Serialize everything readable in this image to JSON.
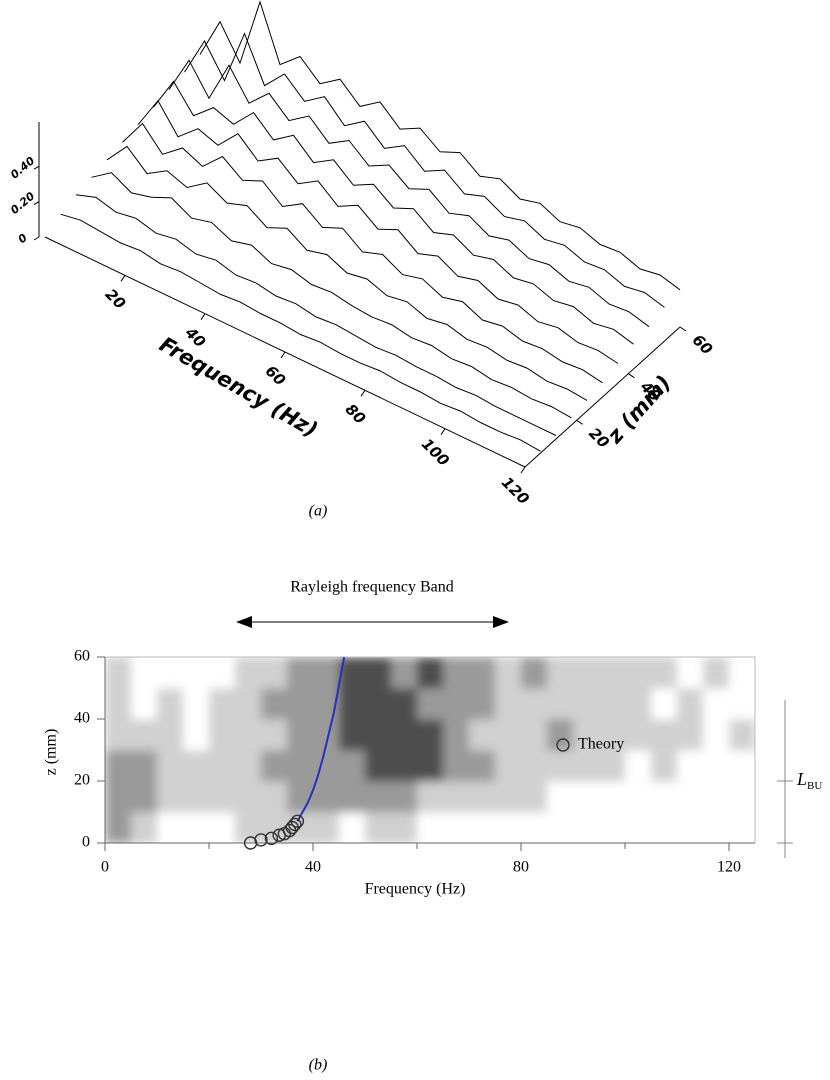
{
  "chart_data": [
    {
      "type": "waterfall",
      "caption": "(a)",
      "xlabel": "Frequency (Hz)",
      "zlabel": "z (mm)",
      "xlim": [
        0,
        120
      ],
      "zlim": [
        0,
        60
      ],
      "ylim": [
        0,
        0.65
      ],
      "xticks": [
        20,
        40,
        60,
        80,
        100,
        120
      ],
      "zticks": [
        20,
        40,
        60
      ],
      "yticks": [
        0,
        {
          "value": 0.2,
          "label": "0.20"
        },
        {
          "value": 0.4,
          "label": "0.40"
        }
      ],
      "color": "#000000",
      "x": [
        0,
        5,
        10,
        15,
        20,
        25,
        30,
        35,
        40,
        45,
        50,
        55,
        60,
        65,
        70,
        75,
        80,
        85,
        90,
        95,
        100,
        105,
        110,
        115,
        120
      ],
      "series": [
        {
          "z": 6,
          "values": [
            0.05,
            0.07,
            0.06,
            0.05,
            0.06,
            0.04,
            0.05,
            0.04,
            0.03,
            0.04,
            0.03,
            0.03,
            0.02,
            0.03,
            0.02,
            0.02,
            0.03,
            0.02,
            0.02,
            0.01,
            0.02,
            0.01,
            0.01,
            0.02,
            0.01
          ]
        },
        {
          "z": 12,
          "values": [
            0.08,
            0.12,
            0.09,
            0.11,
            0.08,
            0.1,
            0.07,
            0.09,
            0.06,
            0.07,
            0.05,
            0.06,
            0.04,
            0.05,
            0.04,
            0.03,
            0.04,
            0.03,
            0.03,
            0.02,
            0.03,
            0.02,
            0.02,
            0.02,
            0.02
          ]
        },
        {
          "z": 18,
          "values": [
            0.1,
            0.18,
            0.12,
            0.15,
            0.2,
            0.14,
            0.17,
            0.12,
            0.15,
            0.1,
            0.12,
            0.09,
            0.1,
            0.08,
            0.07,
            0.08,
            0.06,
            0.07,
            0.05,
            0.06,
            0.04,
            0.05,
            0.04,
            0.05,
            0.04
          ]
        },
        {
          "z": 24,
          "values": [
            0.12,
            0.25,
            0.15,
            0.22,
            0.18,
            0.26,
            0.2,
            0.24,
            0.17,
            0.22,
            0.15,
            0.18,
            0.13,
            0.15,
            0.11,
            0.13,
            0.09,
            0.11,
            0.08,
            0.09,
            0.07,
            0.08,
            0.06,
            0.07,
            0.06
          ]
        },
        {
          "z": 30,
          "values": [
            0.14,
            0.3,
            0.18,
            0.27,
            0.22,
            0.33,
            0.25,
            0.3,
            0.21,
            0.28,
            0.2,
            0.25,
            0.17,
            0.21,
            0.15,
            0.18,
            0.13,
            0.16,
            0.11,
            0.13,
            0.1,
            0.11,
            0.09,
            0.1,
            0.08
          ]
        },
        {
          "z": 36,
          "values": [
            0.16,
            0.35,
            0.2,
            0.3,
            0.26,
            0.38,
            0.28,
            0.35,
            0.26,
            0.33,
            0.24,
            0.3,
            0.22,
            0.27,
            0.19,
            0.23,
            0.17,
            0.2,
            0.15,
            0.17,
            0.13,
            0.15,
            0.12,
            0.13,
            0.11
          ]
        },
        {
          "z": 42,
          "values": [
            0.18,
            0.38,
            0.24,
            0.34,
            0.3,
            0.42,
            0.32,
            0.4,
            0.3,
            0.37,
            0.28,
            0.34,
            0.26,
            0.31,
            0.23,
            0.27,
            0.21,
            0.24,
            0.19,
            0.21,
            0.17,
            0.19,
            0.15,
            0.17,
            0.14
          ]
        },
        {
          "z": 48,
          "values": [
            0.2,
            0.42,
            0.26,
            0.5,
            0.34,
            0.45,
            0.35,
            0.43,
            0.33,
            0.4,
            0.31,
            0.37,
            0.29,
            0.34,
            0.26,
            0.3,
            0.24,
            0.27,
            0.22,
            0.24,
            0.2,
            0.22,
            0.18,
            0.19,
            0.16
          ]
        },
        {
          "z": 54,
          "values": [
            0.22,
            0.45,
            0.28,
            0.6,
            0.36,
            0.48,
            0.38,
            0.46,
            0.35,
            0.43,
            0.33,
            0.4,
            0.31,
            0.37,
            0.29,
            0.33,
            0.27,
            0.3,
            0.25,
            0.27,
            0.23,
            0.24,
            0.2,
            0.22,
            0.19
          ]
        },
        {
          "z": 60,
          "values": [
            0.24,
            0.48,
            0.3,
            0.7,
            0.4,
            0.5,
            0.4,
            0.48,
            0.38,
            0.46,
            0.36,
            0.42,
            0.34,
            0.39,
            0.31,
            0.35,
            0.29,
            0.32,
            0.27,
            0.29,
            0.25,
            0.26,
            0.22,
            0.24,
            0.21
          ]
        }
      ]
    },
    {
      "type": "contour",
      "caption": "(b)",
      "annotation": "Rayleigh frequency Band",
      "xlabel": "Frequency (Hz)",
      "ylabel": "z (mm)",
      "xlim": [
        0,
        125
      ],
      "ylim": [
        0,
        60
      ],
      "xticks": [
        0,
        40,
        80,
        120
      ],
      "xminorticks": [
        20,
        60,
        100
      ],
      "yticks": [
        0,
        20,
        40,
        60
      ],
      "cell_x": [
        0,
        5,
        10,
        15,
        20,
        25,
        30,
        35,
        40,
        45,
        50,
        55,
        60,
        65,
        70,
        75,
        80,
        85,
        90,
        95,
        100,
        105,
        110,
        115,
        120,
        125
      ],
      "cell_y": [
        0,
        10,
        20,
        30,
        40,
        50,
        60
      ],
      "level_colors": [
        "#ffffff",
        "#d0d0d0",
        "#9a9a9a",
        "#4e4e4e"
      ],
      "levels": [
        [
          2,
          1,
          0,
          0,
          0,
          1,
          1,
          1,
          1,
          0,
          1,
          1,
          0,
          0,
          0,
          0,
          0,
          0,
          0,
          0,
          0,
          0,
          0,
          0,
          0
        ],
        [
          2,
          2,
          1,
          1,
          1,
          1,
          1,
          2,
          2,
          2,
          2,
          2,
          1,
          1,
          1,
          1,
          1,
          0,
          0,
          0,
          0,
          0,
          0,
          0,
          0
        ],
        [
          2,
          2,
          1,
          1,
          1,
          1,
          2,
          2,
          2,
          2,
          3,
          3,
          3,
          2,
          2,
          1,
          1,
          1,
          1,
          1,
          0,
          1,
          0,
          0,
          0
        ],
        [
          1,
          1,
          1,
          0,
          1,
          1,
          1,
          2,
          2,
          3,
          3,
          3,
          3,
          2,
          1,
          1,
          1,
          2,
          1,
          1,
          1,
          1,
          1,
          0,
          1
        ],
        [
          1,
          0,
          1,
          0,
          1,
          1,
          2,
          2,
          2,
          3,
          3,
          3,
          2,
          2,
          2,
          1,
          1,
          1,
          1,
          1,
          1,
          0,
          1,
          0,
          0
        ],
        [
          1,
          0,
          0,
          0,
          0,
          1,
          1,
          2,
          2,
          3,
          3,
          2,
          3,
          2,
          2,
          1,
          2,
          1,
          1,
          1,
          1,
          1,
          0,
          1,
          0
        ]
      ],
      "theory": {
        "name": "Theory",
        "color": "#333333",
        "x": [
          28,
          30,
          32,
          33.5,
          34.5,
          35.5,
          36,
          36.5,
          37
        ],
        "y": [
          0,
          1,
          1.5,
          2.5,
          3,
          4,
          5,
          6,
          7
        ]
      },
      "fit": {
        "color": "#2233bb",
        "x": [
          37,
          38,
          39,
          40,
          41,
          42,
          43,
          44,
          45,
          46
        ],
        "y": [
          7,
          10,
          13,
          17,
          22,
          28,
          35,
          42,
          51,
          60
        ]
      },
      "marker_label": {
        "main": "L",
        "sub": "BU"
      },
      "marker_value": 20
    }
  ]
}
